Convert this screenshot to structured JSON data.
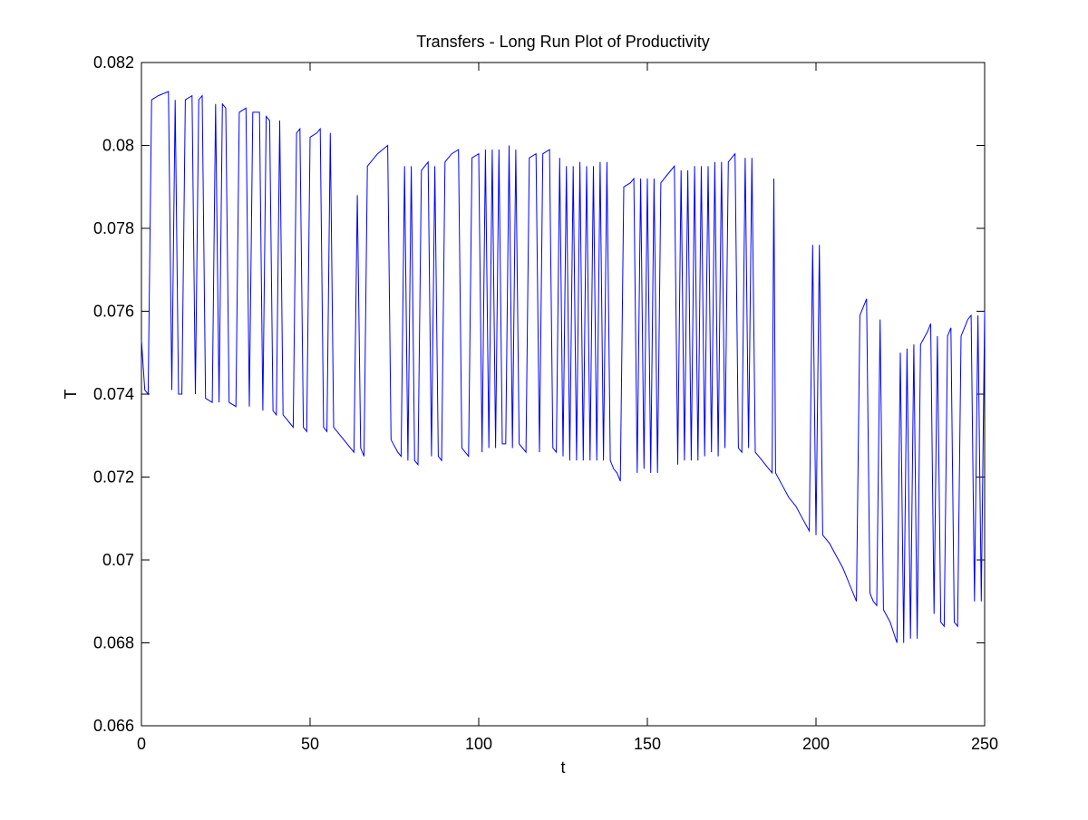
{
  "chart_data": {
    "type": "line",
    "title": "Transfers - Long Run Plot of Productivity",
    "xlabel": "t",
    "ylabel": "T",
    "xlim": [
      0,
      250
    ],
    "ylim": [
      0.066,
      0.082
    ],
    "grid": false,
    "legend": "none",
    "x_ticks": [
      0,
      50,
      100,
      150,
      200,
      250
    ],
    "x_tick_labels": [
      "0",
      "50",
      "100",
      "150",
      "200",
      "250"
    ],
    "y_ticks": [
      0.066,
      0.068,
      0.07,
      0.072,
      0.074,
      0.076,
      0.078,
      0.08,
      0.082
    ],
    "y_tick_labels": [
      "0.066",
      "0.068",
      "0.07",
      "0.072",
      "0.074",
      "0.076",
      "0.078",
      "0.08",
      "0.082"
    ],
    "series": [
      {
        "color": "#0000ff",
        "points": [
          [
            0,
            0.0753
          ],
          [
            1,
            0.0741
          ],
          [
            2,
            0.074
          ],
          [
            3,
            0.0811
          ],
          [
            5,
            0.0812
          ],
          [
            8,
            0.0813
          ],
          [
            9,
            0.0741
          ],
          [
            10,
            0.0811
          ],
          [
            11,
            0.074
          ],
          [
            12,
            0.074
          ],
          [
            13,
            0.0811
          ],
          [
            15,
            0.0812
          ],
          [
            16,
            0.074
          ],
          [
            17,
            0.0811
          ],
          [
            18,
            0.0812
          ],
          [
            19,
            0.0739
          ],
          [
            21,
            0.0738
          ],
          [
            22,
            0.081
          ],
          [
            23,
            0.0738
          ],
          [
            24,
            0.081
          ],
          [
            25,
            0.0809
          ],
          [
            26,
            0.0738
          ],
          [
            28,
            0.0737
          ],
          [
            29,
            0.0808
          ],
          [
            31,
            0.0809
          ],
          [
            32,
            0.0737
          ],
          [
            33,
            0.0808
          ],
          [
            35,
            0.0808
          ],
          [
            36,
            0.0736
          ],
          [
            37,
            0.0807
          ],
          [
            38,
            0.0806
          ],
          [
            39,
            0.0736
          ],
          [
            40,
            0.0735
          ],
          [
            41,
            0.0806
          ],
          [
            42,
            0.0735
          ],
          [
            43,
            0.0734
          ],
          [
            44,
            0.0733
          ],
          [
            45,
            0.0732
          ],
          [
            46,
            0.0803
          ],
          [
            47,
            0.0804
          ],
          [
            48,
            0.0732
          ],
          [
            49,
            0.0731
          ],
          [
            50,
            0.0802
          ],
          [
            52,
            0.0803
          ],
          [
            53,
            0.0804
          ],
          [
            54,
            0.0732
          ],
          [
            55,
            0.0731
          ],
          [
            56,
            0.0803
          ],
          [
            57,
            0.0732
          ],
          [
            59,
            0.073
          ],
          [
            61,
            0.0728
          ],
          [
            63,
            0.0726
          ],
          [
            64,
            0.0788
          ],
          [
            65,
            0.0727
          ],
          [
            66,
            0.0725
          ],
          [
            67,
            0.0795
          ],
          [
            70,
            0.0798
          ],
          [
            73,
            0.08
          ],
          [
            74,
            0.0729
          ],
          [
            76,
            0.0726
          ],
          [
            77,
            0.0725
          ],
          [
            78,
            0.0795
          ],
          [
            79,
            0.0724
          ],
          [
            80,
            0.0795
          ],
          [
            81,
            0.0724
          ],
          [
            82,
            0.0723
          ],
          [
            83,
            0.0794
          ],
          [
            85,
            0.0796
          ],
          [
            86,
            0.0725
          ],
          [
            87,
            0.0795
          ],
          [
            88,
            0.0725
          ],
          [
            89,
            0.0724
          ],
          [
            90,
            0.0796
          ],
          [
            92,
            0.0798
          ],
          [
            94,
            0.0799
          ],
          [
            95,
            0.0727
          ],
          [
            96,
            0.0726
          ],
          [
            97,
            0.0725
          ],
          [
            98,
            0.0797
          ],
          [
            100,
            0.0798
          ],
          [
            101,
            0.0726
          ],
          [
            102,
            0.0799
          ],
          [
            103,
            0.0727
          ],
          [
            104,
            0.0799
          ],
          [
            105,
            0.0727
          ],
          [
            106,
            0.0799
          ],
          [
            107,
            0.0728
          ],
          [
            108,
            0.0728
          ],
          [
            109,
            0.08
          ],
          [
            110,
            0.0727
          ],
          [
            111,
            0.0799
          ],
          [
            112,
            0.0728
          ],
          [
            113,
            0.0727
          ],
          [
            114,
            0.0726
          ],
          [
            115,
            0.0797
          ],
          [
            117,
            0.0798
          ],
          [
            118,
            0.0726
          ],
          [
            119,
            0.0798
          ],
          [
            121,
            0.0799
          ],
          [
            122,
            0.0727
          ],
          [
            123,
            0.0726
          ],
          [
            124,
            0.0797
          ],
          [
            125,
            0.0725
          ],
          [
            126,
            0.0795
          ],
          [
            127,
            0.0724
          ],
          [
            128,
            0.0795
          ],
          [
            129,
            0.0724
          ],
          [
            130,
            0.0796
          ],
          [
            131,
            0.0724
          ],
          [
            132,
            0.0795
          ],
          [
            133,
            0.0724
          ],
          [
            134,
            0.0795
          ],
          [
            135,
            0.0724
          ],
          [
            136,
            0.0796
          ],
          [
            137,
            0.0724
          ],
          [
            138,
            0.0796
          ],
          [
            139,
            0.0724
          ],
          [
            140,
            0.0722
          ],
          [
            141,
            0.0721
          ],
          [
            142,
            0.0719
          ],
          [
            143,
            0.079
          ],
          [
            145,
            0.0791
          ],
          [
            146,
            0.0792
          ],
          [
            147,
            0.0721
          ],
          [
            148,
            0.0792
          ],
          [
            149,
            0.0722
          ],
          [
            150,
            0.0792
          ],
          [
            151,
            0.0721
          ],
          [
            152,
            0.0792
          ],
          [
            153,
            0.0721
          ],
          [
            154,
            0.0791
          ],
          [
            156,
            0.0793
          ],
          [
            158,
            0.0795
          ],
          [
            159,
            0.0723
          ],
          [
            160,
            0.0794
          ],
          [
            161,
            0.0724
          ],
          [
            162,
            0.0794
          ],
          [
            163,
            0.0724
          ],
          [
            164,
            0.0795
          ],
          [
            165,
            0.0724
          ],
          [
            166,
            0.0795
          ],
          [
            167,
            0.0725
          ],
          [
            168,
            0.0795
          ],
          [
            169,
            0.0726
          ],
          [
            170,
            0.0796
          ],
          [
            171,
            0.0725
          ],
          [
            172,
            0.0796
          ],
          [
            173,
            0.0727
          ],
          [
            174,
            0.0796
          ],
          [
            175,
            0.0797
          ],
          [
            176,
            0.0798
          ],
          [
            177,
            0.0727
          ],
          [
            178,
            0.0726
          ],
          [
            179,
            0.0797
          ],
          [
            180,
            0.0727
          ],
          [
            181,
            0.0797
          ],
          [
            182,
            0.0726
          ],
          [
            183,
            0.0725
          ],
          [
            184,
            0.0724
          ],
          [
            185,
            0.0723
          ],
          [
            186,
            0.0722
          ],
          [
            187,
            0.0721
          ],
          [
            187.5,
            0.0792
          ],
          [
            188,
            0.0721
          ],
          [
            190,
            0.0718
          ],
          [
            192,
            0.0715
          ],
          [
            194,
            0.0713
          ],
          [
            196,
            0.071
          ],
          [
            198,
            0.0707
          ],
          [
            199,
            0.0776
          ],
          [
            200,
            0.0706
          ],
          [
            201,
            0.0776
          ],
          [
            202,
            0.0706
          ],
          [
            204,
            0.0704
          ],
          [
            206,
            0.0701
          ],
          [
            208,
            0.0698
          ],
          [
            210,
            0.0694
          ],
          [
            212,
            0.069
          ],
          [
            213,
            0.0759
          ],
          [
            215,
            0.0763
          ],
          [
            216,
            0.0692
          ],
          [
            217,
            0.069
          ],
          [
            218,
            0.0689
          ],
          [
            219,
            0.0758
          ],
          [
            220,
            0.0688
          ],
          [
            222,
            0.0685
          ],
          [
            224,
            0.068
          ],
          [
            225,
            0.075
          ],
          [
            226,
            0.068
          ],
          [
            227,
            0.0751
          ],
          [
            228,
            0.0681
          ],
          [
            229,
            0.0752
          ],
          [
            230,
            0.0681
          ],
          [
            231,
            0.0752
          ],
          [
            233,
            0.0755
          ],
          [
            234,
            0.0757
          ],
          [
            235,
            0.0687
          ],
          [
            236,
            0.0754
          ],
          [
            237,
            0.0685
          ],
          [
            238,
            0.0684
          ],
          [
            239,
            0.0754
          ],
          [
            240,
            0.0756
          ],
          [
            241,
            0.0685
          ],
          [
            242,
            0.0684
          ],
          [
            243,
            0.0754
          ],
          [
            245,
            0.0758
          ],
          [
            246,
            0.0759
          ],
          [
            247,
            0.069
          ],
          [
            248,
            0.0759
          ],
          [
            249,
            0.069
          ],
          [
            250,
            0.076
          ]
        ]
      }
    ]
  }
}
